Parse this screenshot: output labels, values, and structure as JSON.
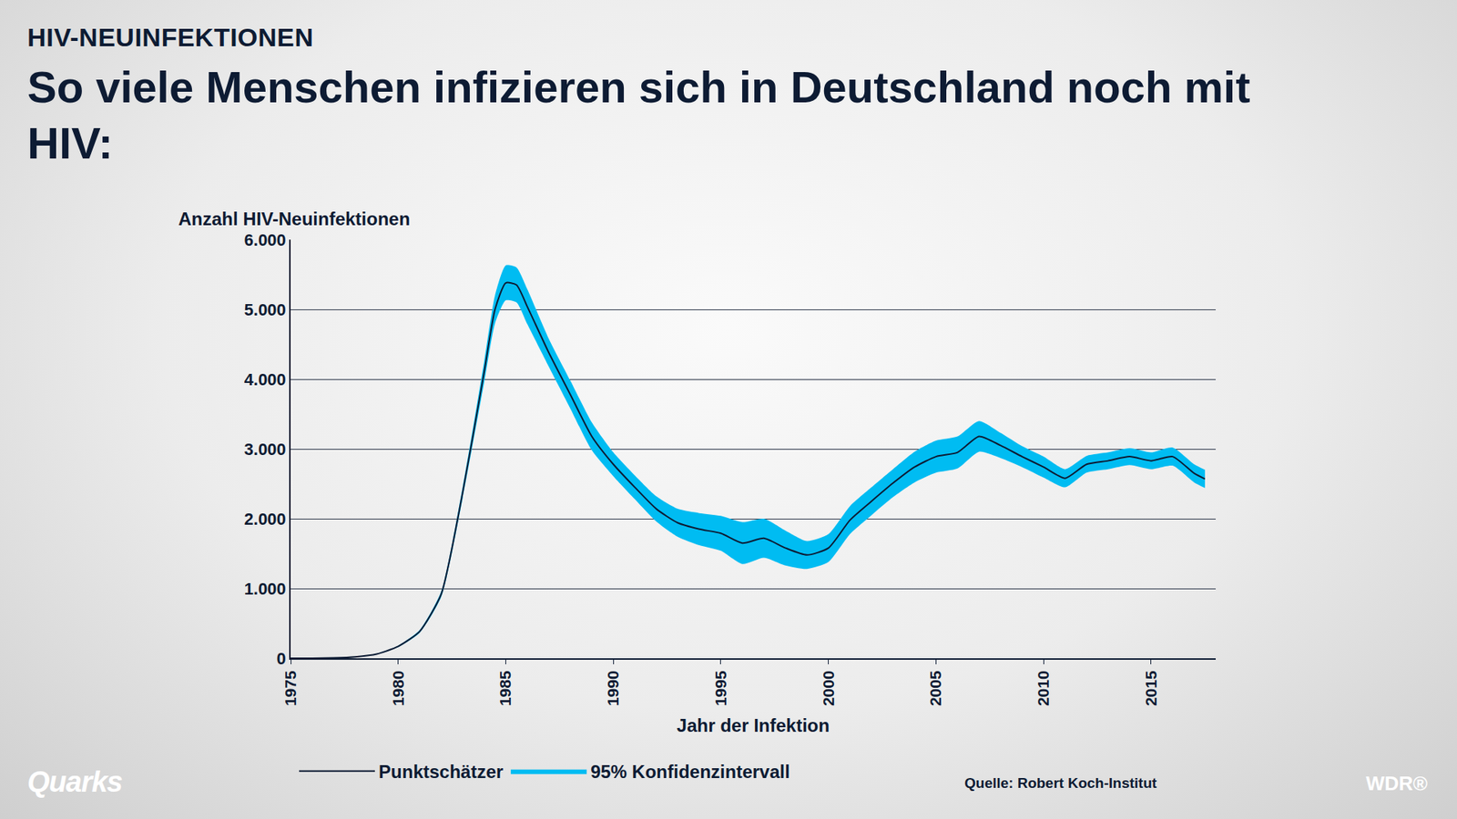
{
  "chart_data": {
    "type": "line",
    "subtitle": "HIV-NEUINFEKTIONEN",
    "title": "So viele Menschen infizieren sich in Deutschland noch mit HIV:",
    "x_label": "Jahr der Infektion",
    "y_label": "Anzahl HIV-Neuinfektionen",
    "source": "Quelle: Robert Koch-Institut",
    "logos": [
      "Quarks",
      "WDR®"
    ],
    "x": [
      1975,
      1976,
      1977,
      1978,
      1979,
      1980,
      1981,
      1982,
      1983,
      1984,
      1984.5,
      1985,
      1985.5,
      1986,
      1987,
      1988,
      1989,
      1990,
      1991,
      1992,
      1993,
      1994,
      1995,
      1996,
      1997,
      1998,
      1999,
      2000,
      2001,
      2002,
      2003,
      2004,
      2005,
      2006,
      2007,
      2008,
      2009,
      2010,
      2011,
      2012,
      2013,
      2014,
      2015,
      2016,
      2017,
      2017.5
    ],
    "series": [
      {
        "name": "Punktschätzer",
        "color": "#0d1b33",
        "line_style": "solid",
        "values": [
          0,
          0,
          5,
          20,
          60,
          170,
          385,
          920,
          2380,
          4110,
          5000,
          5380,
          5350,
          5040,
          4380,
          3780,
          3180,
          2780,
          2450,
          2140,
          1940,
          1850,
          1790,
          1650,
          1720,
          1580,
          1480,
          1580,
          1980,
          2250,
          2510,
          2740,
          2890,
          2950,
          3180,
          3050,
          2890,
          2740,
          2580,
          2780,
          2830,
          2890,
          2830,
          2890,
          2650,
          2570
        ]
      },
      {
        "name": "95% Konfidenzintervall",
        "color": "#00bcf2",
        "type": "band",
        "lower": [
          0,
          0,
          5,
          20,
          55,
          160,
          365,
          880,
          2300,
          3960,
          4800,
          5130,
          5100,
          4790,
          4180,
          3580,
          2980,
          2610,
          2280,
          1960,
          1740,
          1620,
          1540,
          1350,
          1440,
          1330,
          1280,
          1380,
          1780,
          2050,
          2310,
          2520,
          2660,
          2720,
          2960,
          2870,
          2740,
          2590,
          2450,
          2660,
          2710,
          2770,
          2710,
          2760,
          2520,
          2440
        ],
        "upper": [
          0,
          0,
          5,
          20,
          65,
          180,
          405,
          960,
          2460,
          4260,
          5200,
          5630,
          5600,
          5290,
          4580,
          3980,
          3380,
          2950,
          2620,
          2320,
          2140,
          2080,
          2040,
          1950,
          2000,
          1830,
          1680,
          1780,
          2180,
          2450,
          2710,
          2960,
          3120,
          3180,
          3400,
          3230,
          3040,
          2890,
          2710,
          2900,
          2950,
          3010,
          2950,
          3020,
          2780,
          2700
        ]
      }
    ],
    "xlim": [
      1975,
      2018
    ],
    "xticks": [
      1975,
      1980,
      1985,
      1990,
      1995,
      2000,
      2005,
      2010,
      2015
    ],
    "ylim": [
      0,
      6000
    ],
    "yticks": [
      0,
      {
        "value": 1000,
        "label": "1.000"
      },
      {
        "value": 2000,
        "label": "2.000"
      },
      {
        "value": 3000,
        "label": "3.000"
      },
      {
        "value": 4000,
        "label": "4.000"
      },
      {
        "value": 5000,
        "label": "5.000"
      },
      {
        "value": 6000,
        "label": "6.000"
      }
    ],
    "grid": true,
    "legend": "bottom"
  }
}
